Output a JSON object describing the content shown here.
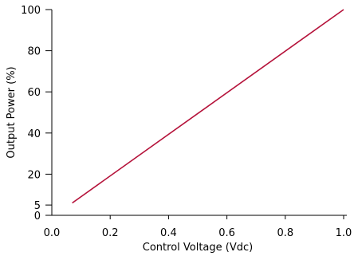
{
  "chart_data": {
    "type": "line",
    "title": "",
    "xlabel": "Control Voltage (Vdc)",
    "ylabel": "Output Power (%)",
    "xlim": [
      0.0,
      1.0
    ],
    "ylim": [
      0,
      100
    ],
    "xticks": [
      "0.0",
      "0.2",
      "0.4",
      "0.6",
      "0.8",
      "1.0"
    ],
    "yticks": [
      "0",
      "5",
      "20",
      "40",
      "60",
      "80",
      "100"
    ],
    "grid": false,
    "series": [
      {
        "color": "#b5123a",
        "x": [
          0.07,
          1.0
        ],
        "y": [
          6,
          100
        ]
      }
    ]
  }
}
